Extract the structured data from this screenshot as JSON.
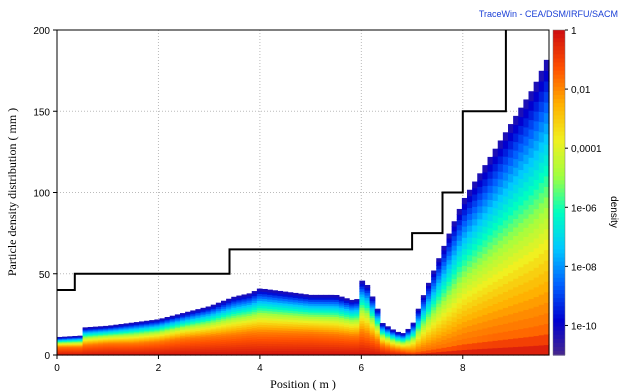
{
  "watermark": "TraceWin - CEA/DSM/IRFU/SACM",
  "chart_data": {
    "type": "heatmap",
    "title": "",
    "xlabel": "Position ( m )",
    "ylabel": "Particle density distribution ( mm )",
    "colorbar_label": "density",
    "xlim": [
      0,
      9.7
    ],
    "ylim": [
      0,
      200
    ],
    "x_ticks": [
      0,
      2,
      4,
      6,
      8
    ],
    "y_ticks": [
      0,
      50,
      100,
      150,
      200
    ],
    "grid": true,
    "colorbar_ticks": [
      "1",
      "0,01",
      "0,0001",
      "1e-06",
      "1e-08",
      "1e-10"
    ],
    "colorbar_tick_exponents": [
      0,
      -2,
      -4,
      -6,
      -8,
      -10
    ],
    "colorbar_range": [
      -11,
      0
    ],
    "colormap": [
      "#4b2a8a",
      "#0000d0",
      "#0060ff",
      "#00c8ff",
      "#00ffc0",
      "#a0ff40",
      "#f0f020",
      "#ffb000",
      "#ff5000",
      "#d01010"
    ],
    "aperture_line": {
      "name": "",
      "color": "#000000",
      "x": [
        0,
        0.35,
        0.35,
        3.4,
        3.4,
        7.0,
        7.0,
        7.6,
        7.6,
        8.0,
        8.0,
        8.85,
        8.85
      ],
      "y": [
        40,
        40,
        50,
        50,
        65,
        65,
        75,
        75,
        100,
        100,
        150,
        150,
        200
      ]
    },
    "beam_envelope": {
      "x": [
        0,
        0.5,
        0.55,
        1.0,
        1.5,
        2.0,
        2.5,
        3.0,
        3.5,
        3.8,
        4.0,
        4.5,
        5.0,
        5.5,
        5.9,
        6.0,
        6.1,
        6.3,
        6.4,
        6.6,
        6.8,
        7.0,
        7.2,
        7.4,
        7.6,
        7.8,
        8.0,
        8.3,
        8.6,
        9.0,
        9.4,
        9.7
      ],
      "y_top": [
        11,
        12,
        17,
        18,
        20,
        22,
        26,
        30,
        36,
        38,
        41,
        39,
        37,
        37,
        33,
        46,
        44,
        30,
        20,
        16,
        13,
        18,
        35,
        50,
        65,
        80,
        95,
        110,
        125,
        145,
        165,
        185
      ],
      "y_dense": [
        5,
        5,
        6,
        7,
        7,
        8,
        10,
        11,
        12,
        13,
        13,
        13,
        13,
        12,
        11,
        13,
        12,
        9,
        6,
        4,
        3,
        2,
        3,
        4,
        5,
        6,
        8,
        10,
        12,
        14,
        16,
        18
      ]
    }
  }
}
